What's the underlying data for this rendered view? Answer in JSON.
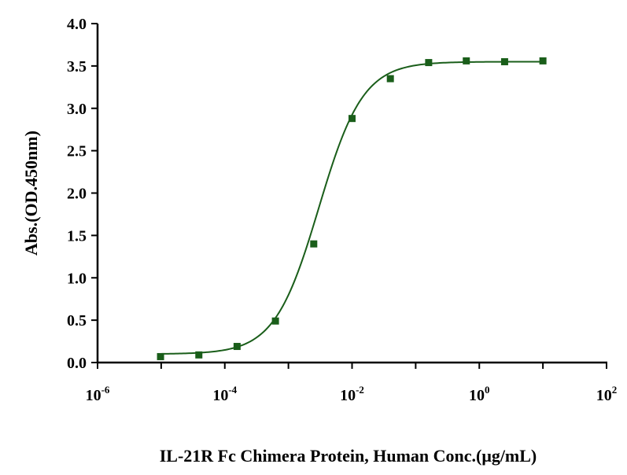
{
  "chart_data": {
    "type": "scatter",
    "xlabel": "IL-21R Fc Chimera Protein, Human Conc.(μg/mL)",
    "ylabel": "Abs.(OD.450nm)",
    "xscale": "log",
    "xlim": [
      1e-06,
      100
    ],
    "ylim": [
      0,
      4
    ],
    "xticks": [
      {
        "base": "10",
        "exp": "-6"
      },
      {
        "base": "10",
        "exp": "-4"
      },
      {
        "base": "10",
        "exp": "-2"
      },
      {
        "base": "10",
        "exp": "0"
      },
      {
        "base": "10",
        "exp": "2"
      }
    ],
    "yticks": [
      "0.0",
      "0.5",
      "1.0",
      "1.5",
      "2.0",
      "2.5",
      "3.0",
      "3.5",
      "4.0"
    ],
    "grid": false,
    "series": [
      {
        "color": "#1a5e1a",
        "marker": "square",
        "points": [
          {
            "x": 9.77e-06,
            "y": 0.07
          },
          {
            "x": 3.91e-05,
            "y": 0.09
          },
          {
            "x": 0.000156,
            "y": 0.19
          },
          {
            "x": 0.000625,
            "y": 0.49
          },
          {
            "x": 0.0025,
            "y": 1.4
          },
          {
            "x": 0.01,
            "y": 2.88
          },
          {
            "x": 0.04,
            "y": 3.35
          },
          {
            "x": 0.16,
            "y": 3.54
          },
          {
            "x": 0.625,
            "y": 3.56
          },
          {
            "x": 2.5,
            "y": 3.55
          },
          {
            "x": 10,
            "y": 3.56
          }
        ],
        "fit": {
          "bottom": 0.1,
          "top": 3.55,
          "ec50": 0.003,
          "hill": 1.25
        }
      }
    ]
  }
}
